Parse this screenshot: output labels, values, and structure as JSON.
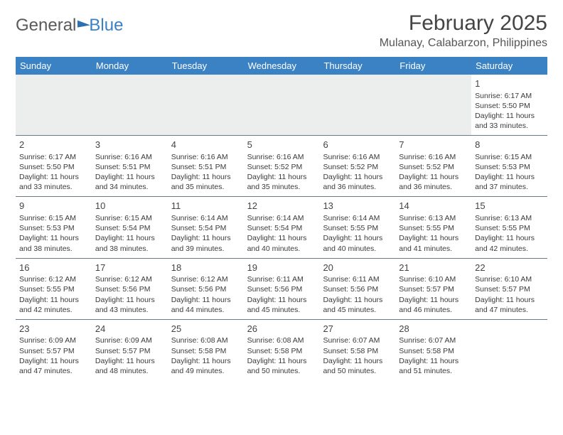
{
  "logo": {
    "part1": "General",
    "part2": "Blue"
  },
  "title": "February 2025",
  "subtitle": "Mulanay, Calabarzon, Philippines",
  "colors": {
    "header_bg": "#3b82c4",
    "header_text": "#ffffff",
    "divider": "#6a7a8a",
    "blank_bg": "#eceded",
    "text": "#3a3a3a"
  },
  "day_headers": [
    "Sunday",
    "Monday",
    "Tuesday",
    "Wednesday",
    "Thursday",
    "Friday",
    "Saturday"
  ],
  "weeks": [
    [
      {
        "blank": true
      },
      {
        "blank": true
      },
      {
        "blank": true
      },
      {
        "blank": true
      },
      {
        "blank": true
      },
      {
        "blank": true
      },
      {
        "day": "1",
        "sunrise": "Sunrise: 6:17 AM",
        "sunset": "Sunset: 5:50 PM",
        "daylight1": "Daylight: 11 hours",
        "daylight2": "and 33 minutes."
      }
    ],
    [
      {
        "day": "2",
        "sunrise": "Sunrise: 6:17 AM",
        "sunset": "Sunset: 5:50 PM",
        "daylight1": "Daylight: 11 hours",
        "daylight2": "and 33 minutes."
      },
      {
        "day": "3",
        "sunrise": "Sunrise: 6:16 AM",
        "sunset": "Sunset: 5:51 PM",
        "daylight1": "Daylight: 11 hours",
        "daylight2": "and 34 minutes."
      },
      {
        "day": "4",
        "sunrise": "Sunrise: 6:16 AM",
        "sunset": "Sunset: 5:51 PM",
        "daylight1": "Daylight: 11 hours",
        "daylight2": "and 35 minutes."
      },
      {
        "day": "5",
        "sunrise": "Sunrise: 6:16 AM",
        "sunset": "Sunset: 5:52 PM",
        "daylight1": "Daylight: 11 hours",
        "daylight2": "and 35 minutes."
      },
      {
        "day": "6",
        "sunrise": "Sunrise: 6:16 AM",
        "sunset": "Sunset: 5:52 PM",
        "daylight1": "Daylight: 11 hours",
        "daylight2": "and 36 minutes."
      },
      {
        "day": "7",
        "sunrise": "Sunrise: 6:16 AM",
        "sunset": "Sunset: 5:52 PM",
        "daylight1": "Daylight: 11 hours",
        "daylight2": "and 36 minutes."
      },
      {
        "day": "8",
        "sunrise": "Sunrise: 6:15 AM",
        "sunset": "Sunset: 5:53 PM",
        "daylight1": "Daylight: 11 hours",
        "daylight2": "and 37 minutes."
      }
    ],
    [
      {
        "day": "9",
        "sunrise": "Sunrise: 6:15 AM",
        "sunset": "Sunset: 5:53 PM",
        "daylight1": "Daylight: 11 hours",
        "daylight2": "and 38 minutes."
      },
      {
        "day": "10",
        "sunrise": "Sunrise: 6:15 AM",
        "sunset": "Sunset: 5:54 PM",
        "daylight1": "Daylight: 11 hours",
        "daylight2": "and 38 minutes."
      },
      {
        "day": "11",
        "sunrise": "Sunrise: 6:14 AM",
        "sunset": "Sunset: 5:54 PM",
        "daylight1": "Daylight: 11 hours",
        "daylight2": "and 39 minutes."
      },
      {
        "day": "12",
        "sunrise": "Sunrise: 6:14 AM",
        "sunset": "Sunset: 5:54 PM",
        "daylight1": "Daylight: 11 hours",
        "daylight2": "and 40 minutes."
      },
      {
        "day": "13",
        "sunrise": "Sunrise: 6:14 AM",
        "sunset": "Sunset: 5:55 PM",
        "daylight1": "Daylight: 11 hours",
        "daylight2": "and 40 minutes."
      },
      {
        "day": "14",
        "sunrise": "Sunrise: 6:13 AM",
        "sunset": "Sunset: 5:55 PM",
        "daylight1": "Daylight: 11 hours",
        "daylight2": "and 41 minutes."
      },
      {
        "day": "15",
        "sunrise": "Sunrise: 6:13 AM",
        "sunset": "Sunset: 5:55 PM",
        "daylight1": "Daylight: 11 hours",
        "daylight2": "and 42 minutes."
      }
    ],
    [
      {
        "day": "16",
        "sunrise": "Sunrise: 6:12 AM",
        "sunset": "Sunset: 5:55 PM",
        "daylight1": "Daylight: 11 hours",
        "daylight2": "and 42 minutes."
      },
      {
        "day": "17",
        "sunrise": "Sunrise: 6:12 AM",
        "sunset": "Sunset: 5:56 PM",
        "daylight1": "Daylight: 11 hours",
        "daylight2": "and 43 minutes."
      },
      {
        "day": "18",
        "sunrise": "Sunrise: 6:12 AM",
        "sunset": "Sunset: 5:56 PM",
        "daylight1": "Daylight: 11 hours",
        "daylight2": "and 44 minutes."
      },
      {
        "day": "19",
        "sunrise": "Sunrise: 6:11 AM",
        "sunset": "Sunset: 5:56 PM",
        "daylight1": "Daylight: 11 hours",
        "daylight2": "and 45 minutes."
      },
      {
        "day": "20",
        "sunrise": "Sunrise: 6:11 AM",
        "sunset": "Sunset: 5:56 PM",
        "daylight1": "Daylight: 11 hours",
        "daylight2": "and 45 minutes."
      },
      {
        "day": "21",
        "sunrise": "Sunrise: 6:10 AM",
        "sunset": "Sunset: 5:57 PM",
        "daylight1": "Daylight: 11 hours",
        "daylight2": "and 46 minutes."
      },
      {
        "day": "22",
        "sunrise": "Sunrise: 6:10 AM",
        "sunset": "Sunset: 5:57 PM",
        "daylight1": "Daylight: 11 hours",
        "daylight2": "and 47 minutes."
      }
    ],
    [
      {
        "day": "23",
        "sunrise": "Sunrise: 6:09 AM",
        "sunset": "Sunset: 5:57 PM",
        "daylight1": "Daylight: 11 hours",
        "daylight2": "and 47 minutes."
      },
      {
        "day": "24",
        "sunrise": "Sunrise: 6:09 AM",
        "sunset": "Sunset: 5:57 PM",
        "daylight1": "Daylight: 11 hours",
        "daylight2": "and 48 minutes."
      },
      {
        "day": "25",
        "sunrise": "Sunrise: 6:08 AM",
        "sunset": "Sunset: 5:58 PM",
        "daylight1": "Daylight: 11 hours",
        "daylight2": "and 49 minutes."
      },
      {
        "day": "26",
        "sunrise": "Sunrise: 6:08 AM",
        "sunset": "Sunset: 5:58 PM",
        "daylight1": "Daylight: 11 hours",
        "daylight2": "and 50 minutes."
      },
      {
        "day": "27",
        "sunrise": "Sunrise: 6:07 AM",
        "sunset": "Sunset: 5:58 PM",
        "daylight1": "Daylight: 11 hours",
        "daylight2": "and 50 minutes."
      },
      {
        "day": "28",
        "sunrise": "Sunrise: 6:07 AM",
        "sunset": "Sunset: 5:58 PM",
        "daylight1": "Daylight: 11 hours",
        "daylight2": "and 51 minutes."
      },
      {
        "blank": true,
        "trailing": true
      }
    ]
  ]
}
